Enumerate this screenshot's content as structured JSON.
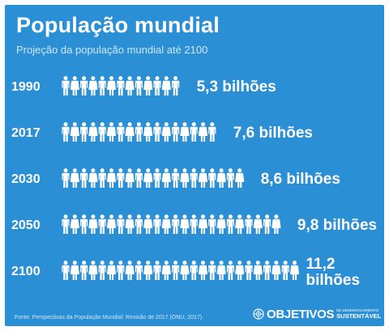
{
  "title": "População mundial",
  "subtitle": "Projeção da população mundial até 2100",
  "source": "Fonte: Perspectivas da População Mundial: Revisão de 2017 (ONU, 2017)",
  "logo": {
    "icon": "un-emblem-icon",
    "word": "OBJETIVOS",
    "small": "DE DESENVOLVIMENTO",
    "sub": "SUSTENTÁVEL"
  },
  "colors": {
    "background": "#2b8fd6",
    "icon": "#ffffff",
    "subtitle": "#cfe6f7"
  },
  "chart_data": {
    "type": "bar",
    "style": "pictogram",
    "icon": "person-icon",
    "title": "População mundial",
    "subtitle": "Projeção da população mundial até 2100",
    "categories": [
      "1990",
      "2017",
      "2030",
      "2050",
      "2100"
    ],
    "values": [
      5.3,
      7.6,
      8.6,
      9.8,
      11.2
    ],
    "icon_counts": [
      13,
      17,
      20,
      24,
      26
    ],
    "unit": "bilhões",
    "value_labels": [
      "5,3 bilhões",
      "7,6 bilhões",
      "8,6 bilhões",
      "9,8 bilhões",
      "11,2 bilhões"
    ],
    "legend": "none",
    "grid": false
  }
}
